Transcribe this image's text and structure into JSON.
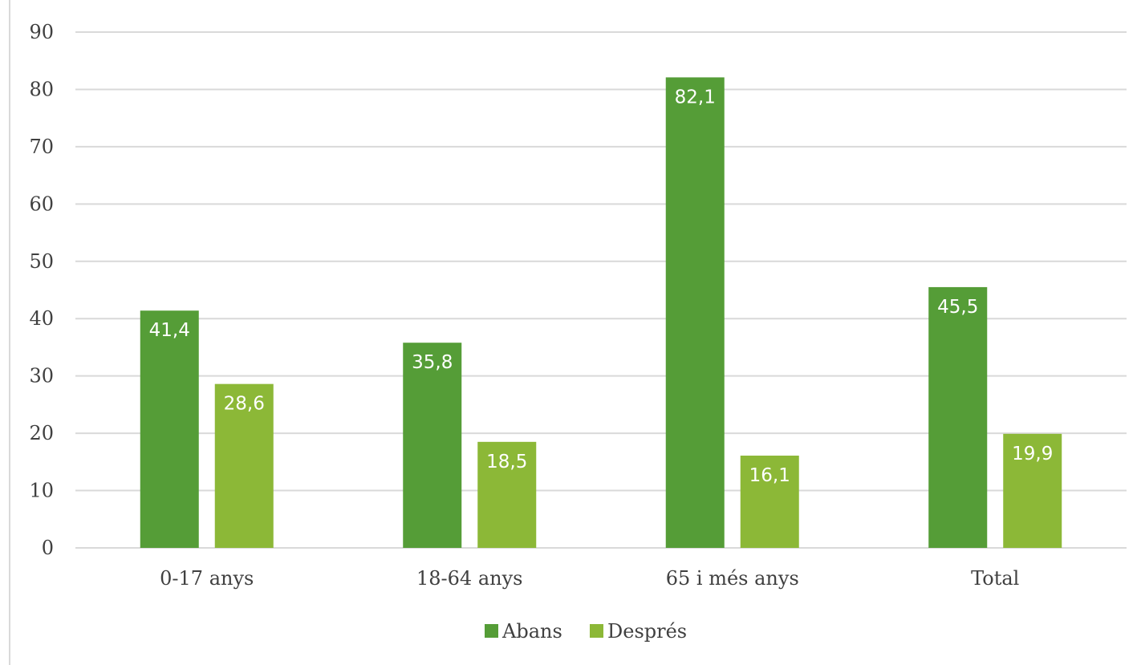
{
  "chart_data": {
    "type": "bar",
    "categories": [
      "0-17 anys",
      "18-64 anys",
      "65 i més anys",
      "Total"
    ],
    "series": [
      {
        "name": "Abans",
        "values": [
          41.4,
          35.8,
          82.1,
          45.5
        ],
        "labels": [
          "41,4",
          "35,8",
          "82,1",
          "45,5"
        ],
        "color": "#559d37"
      },
      {
        "name": "Després",
        "values": [
          28.6,
          18.5,
          16.1,
          19.9
        ],
        "labels": [
          "28,6",
          "18,5",
          "16,1",
          "19,9"
        ],
        "color": "#8cb837"
      }
    ],
    "title": "",
    "xlabel": "",
    "ylabel": "",
    "ylim": [
      0,
      90
    ],
    "yticks": [
      0,
      10,
      20,
      30,
      40,
      50,
      60,
      70,
      80,
      90
    ],
    "grid": true,
    "legend_position": "bottom"
  }
}
